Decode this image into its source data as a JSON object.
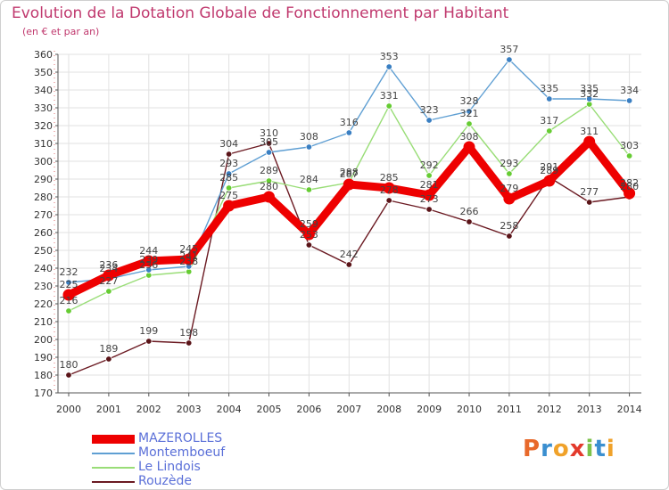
{
  "header": {
    "title": "Evolution de la Dotation Globale de Fonctionnement par Habitant",
    "subtitle": "(en € et par an)"
  },
  "logo": {
    "text": "Proxiti",
    "letters": [
      "P",
      "r",
      "o",
      "x",
      "i",
      "t",
      "i"
    ],
    "colors": [
      "#e8692b",
      "#3a8fd0",
      "#f0a22a",
      "#e33a2c",
      "#7cc24a",
      "#3a8fd0",
      "#f0a22a"
    ]
  },
  "chart_data": {
    "type": "line",
    "title": "Evolution de la Dotation Globale de Fonctionnement par Habitant",
    "subtitle": "(en € et par an)",
    "xlabel": "",
    "ylabel": "",
    "ylim": [
      170,
      360
    ],
    "y_ticks": [
      170,
      180,
      190,
      200,
      210,
      220,
      230,
      240,
      250,
      260,
      270,
      280,
      290,
      300,
      310,
      320,
      330,
      340,
      350,
      360
    ],
    "grid": true,
    "legend_position": "bottom-left",
    "categories": [
      "2000",
      "2001",
      "2002",
      "2003",
      "2004",
      "2005",
      "2006",
      "2007",
      "2008",
      "2009",
      "2010",
      "2011",
      "2012",
      "2013",
      "2014"
    ],
    "series": [
      {
        "name": "Rouzède",
        "color": "#6b1a22",
        "marker_color": "#5a1418",
        "values": [
          180,
          189,
          199,
          198,
          304,
          310,
          253,
          242,
          278,
          273,
          266,
          258,
          291,
          277,
          280
        ],
        "labels": [
          "180",
          "189",
          "199",
          "198",
          "304",
          "310",
          "253",
          "242",
          "278",
          "273",
          "266",
          "258",
          "291",
          "277",
          "280"
        ]
      },
      {
        "name": "Le Lindois",
        "color": "#99dd77",
        "marker_color": "#66cc33",
        "values": [
          216,
          227,
          236,
          238,
          285,
          289,
          284,
          288,
          331,
          292,
          321,
          293,
          317,
          332,
          303
        ],
        "labels": [
          "216",
          "227",
          "236",
          "238",
          "285",
          "289",
          "284",
          "288",
          "331",
          "292",
          "321",
          "293",
          "317",
          "332",
          "303"
        ]
      },
      {
        "name": "Montemboeuf",
        "color": "#5f9fd3",
        "marker_color": "#3a7fc2",
        "values": [
          232,
          234,
          239,
          241,
          293,
          305,
          308,
          316,
          353,
          323,
          328,
          357,
          335,
          335,
          334
        ],
        "labels": [
          "232",
          "234",
          "239",
          "241",
          "293",
          "305",
          "308",
          "316",
          "353",
          "323",
          "328",
          "357",
          "335",
          "335",
          "334"
        ]
      },
      {
        "name": "MAZEROLLES",
        "color": "#ee0000",
        "marker_color": "#ee0000",
        "values": [
          225,
          236,
          244,
          245,
          275,
          280,
          259,
          287,
          285,
          281,
          308,
          279,
          289,
          311,
          282
        ],
        "labels": [
          "225",
          "236",
          "244",
          "245",
          "275",
          "280",
          "259",
          "287",
          "285",
          "281",
          "308",
          "279",
          "289",
          "311",
          "282"
        ]
      }
    ]
  },
  "legend": {
    "items": [
      {
        "name": "MAZEROLLES",
        "color": "#ee0000",
        "text_color": "#5a6fd8",
        "thickness": 10
      },
      {
        "name": "Montemboeuf",
        "color": "#5f9fd3",
        "text_color": "#5a6fd8",
        "thickness": 2
      },
      {
        "name": "Le Lindois",
        "color": "#99dd77",
        "text_color": "#5a6fd8",
        "thickness": 2
      },
      {
        "name": "Rouzède",
        "color": "#6b1a22",
        "text_color": "#5a6fd8",
        "thickness": 2
      }
    ]
  }
}
